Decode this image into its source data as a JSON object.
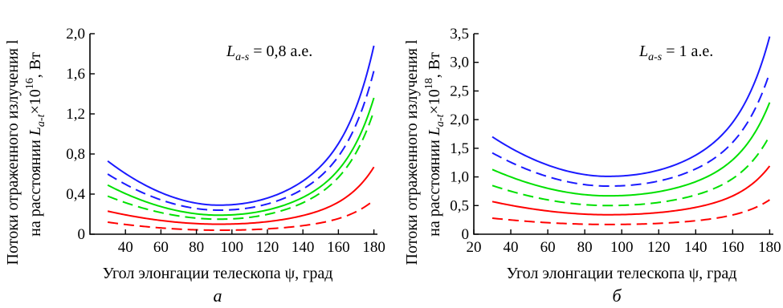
{
  "chart_data": [
    {
      "type": "line",
      "panel_label": "а",
      "annotation": {
        "main": "L",
        "sub": "a-s",
        "rest": " = 0,8 а.е."
      },
      "xlabel": "Угол элонгации телескопа ψ, град",
      "ylabel": {
        "line1": "Потоки отраженного излучения l",
        "line2_pre": "на расстоянии ",
        "line2_L": "L",
        "line2_sub": "a-t",
        "line2_mid": "×10",
        "line2_sup": "16",
        "line2_post": ", Вт"
      },
      "xlim": [
        20,
        182
      ],
      "ylim": [
        0,
        2.0
      ],
      "x_ticks": [
        "40",
        "60",
        "80",
        "100",
        "120",
        "140",
        "160",
        "180"
      ],
      "y_ticks": [
        "0",
        "0,4",
        "0,8",
        "1,2",
        "1,6",
        "2,0"
      ],
      "series": [
        {
          "color": "#1a1aff",
          "dash": false,
          "min": 0.29,
          "at30": 0.73,
          "at180": 1.88
        },
        {
          "color": "#1a1aff",
          "dash": true,
          "min": 0.24,
          "at30": 0.6,
          "at180": 1.63
        },
        {
          "color": "#00e000",
          "dash": false,
          "min": 0.19,
          "at30": 0.49,
          "at180": 1.36
        },
        {
          "color": "#00e000",
          "dash": true,
          "min": 0.15,
          "at30": 0.38,
          "at180": 1.23
        },
        {
          "color": "#ff0000",
          "dash": false,
          "min": 0.1,
          "at30": 0.23,
          "at180": 0.67
        },
        {
          "color": "#ff0000",
          "dash": true,
          "min": 0.04,
          "at30": 0.12,
          "at180": 0.34
        }
      ]
    },
    {
      "type": "line",
      "panel_label": "б",
      "annotation": {
        "main": "L",
        "sub": "a-s",
        "rest": " = 1 а.е."
      },
      "xlabel": "Угол элонгации телескопа ψ, град",
      "ylabel": {
        "line1": "Потоки отраженного излучения l",
        "line2_pre": "на расстоянии ",
        "line2_L": "L",
        "line2_sub": "a-t",
        "line2_mid": "×10",
        "line2_sup": "18",
        "line2_post": ", Вт"
      },
      "xlim": [
        20,
        182
      ],
      "ylim": [
        0,
        3.5
      ],
      "x_ticks": [
        "20",
        "40",
        "60",
        "80",
        "100",
        "120",
        "140",
        "160",
        "180"
      ],
      "y_ticks": [
        "0",
        "0,5",
        "1,0",
        "1,5",
        "2,0",
        "2,5",
        "3,0",
        "3,5"
      ],
      "series": [
        {
          "color": "#1a1aff",
          "dash": false,
          "min": 1.01,
          "at30": 1.7,
          "at180": 3.45
        },
        {
          "color": "#1a1aff",
          "dash": true,
          "min": 0.84,
          "at30": 1.42,
          "at180": 2.82
        },
        {
          "color": "#00e000",
          "dash": false,
          "min": 0.67,
          "at30": 1.13,
          "at180": 2.3
        },
        {
          "color": "#00e000",
          "dash": true,
          "min": 0.5,
          "at30": 0.85,
          "at180": 1.72
        },
        {
          "color": "#ff0000",
          "dash": false,
          "min": 0.34,
          "at30": 0.57,
          "at180": 1.19
        },
        {
          "color": "#ff0000",
          "dash": true,
          "min": 0.17,
          "at30": 0.28,
          "at180": 0.6
        }
      ]
    }
  ]
}
